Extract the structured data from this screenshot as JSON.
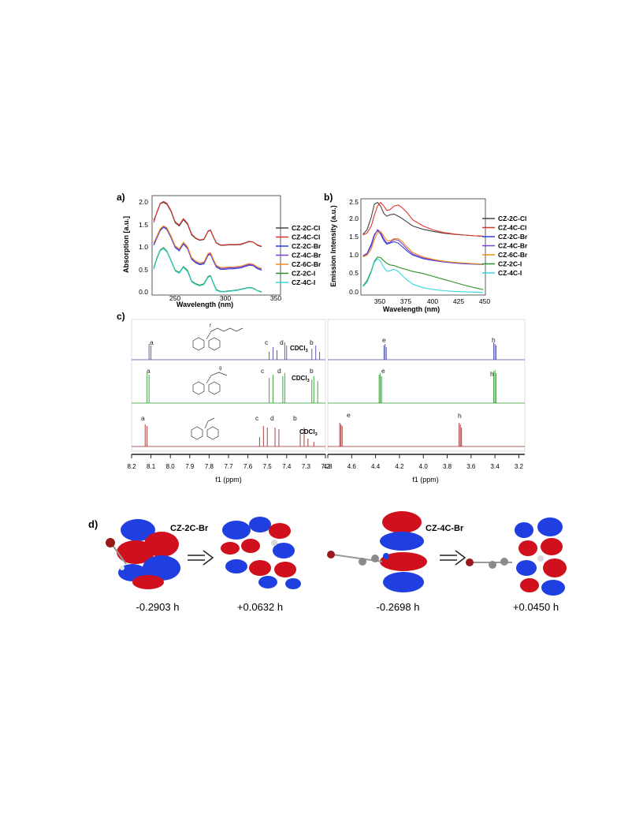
{
  "panel_a": {
    "label": "a)",
    "ylabel": "Absorption [a.u.]",
    "xlabel": "Wavelength (nm)",
    "xticks": [
      "250",
      "300",
      "350"
    ],
    "yticks": [
      "0.0",
      "0.5",
      "1.0",
      "1.5",
      "2.0"
    ],
    "legend": [
      {
        "name": "CZ-2C-Cl",
        "color": "#444444"
      },
      {
        "name": "CZ-4C-Cl",
        "color": "#e0342a"
      },
      {
        "name": "CZ-2C-Br",
        "color": "#2f43d8"
      },
      {
        "name": "CZ-4C-Br",
        "color": "#7a3fd0"
      },
      {
        "name": "CZ-6C-Br",
        "color": "#f08c1e"
      },
      {
        "name": "CZ-2C-I",
        "color": "#2f8f2a"
      },
      {
        "name": "CZ-4C-I",
        "color": "#35d8e0"
      }
    ]
  },
  "panel_b": {
    "label": "b)",
    "ylabel": "Emission Intensity (a.u.)",
    "xlabel": "Wavelength (nm)",
    "xticks": [
      "350",
      "375",
      "400",
      "425",
      "450"
    ],
    "yticks": [
      "0.0",
      "0.5",
      "1.0",
      "1.5",
      "2.0",
      "2.5"
    ],
    "legend": [
      {
        "name": "CZ-2C-Cl",
        "color": "#444444"
      },
      {
        "name": "CZ-4C-Cl",
        "color": "#e0342a"
      },
      {
        "name": "CZ-2C-Br",
        "color": "#2f43d8"
      },
      {
        "name": "CZ-4C-Br",
        "color": "#7a3fd0"
      },
      {
        "name": "CZ-6C-Br",
        "color": "#f08c1e"
      },
      {
        "name": "CZ-2C-I",
        "color": "#2f8f2a"
      },
      {
        "name": "CZ-4C-I",
        "color": "#35d8e0"
      }
    ]
  },
  "panel_c": {
    "label": "c)",
    "xlabel": "f1 (ppm)",
    "left_xticks": [
      "8.2",
      "8.1",
      "8.0",
      "7.9",
      "7.8",
      "7.7",
      "7.6",
      "7.5",
      "7.4",
      "7.3",
      "7.2"
    ],
    "right_xticks": [
      "4.8",
      "4.6",
      "4.4",
      "4.2",
      "4.0",
      "3.8",
      "3.6",
      "3.4",
      "3.2"
    ],
    "solvent": "CDCl",
    "solvent_sub": "3",
    "peak_letters": [
      "a",
      "b",
      "c",
      "d",
      "e",
      "f",
      "g",
      "h"
    ],
    "trace_colors": [
      "#4a4ab0",
      "#2f9a2f",
      "#a02a2a"
    ]
  },
  "panel_d": {
    "label": "d)",
    "molecule_1": "CZ-2C-Br",
    "molecule_2": "CZ-4C-Br",
    "energies": [
      "-0.2903 h",
      "+0.0632 h",
      "-0.2698 h",
      "+0.0450 h"
    ],
    "colors": {
      "lobe_red": "#d0101c",
      "lobe_blue": "#1f3fe0",
      "atom_br": "#9a1a1a",
      "atom_c": "#8a8a8a",
      "atom_h": "#e6e6e6"
    }
  },
  "chart_data": [
    {
      "type": "line",
      "title": "",
      "xlabel": "Wavelength (nm)",
      "ylabel": "Absorption [a.u.]",
      "xlim": [
        222,
        378
      ],
      "ylim": [
        -0.05,
        2.15
      ],
      "series": [
        {
          "name": "CZ-2C-Cl",
          "x": [
            224,
            228,
            232,
            236,
            240,
            245,
            250,
            255,
            260,
            265,
            270,
            275,
            280,
            285,
            290,
            293,
            296,
            300,
            305,
            310,
            315,
            320,
            325,
            330,
            335,
            340,
            345,
            350,
            355
          ],
          "values": [
            1.6,
            1.78,
            1.97,
            2.0,
            1.96,
            1.8,
            1.55,
            1.48,
            1.62,
            1.52,
            1.28,
            1.2,
            1.16,
            1.18,
            1.36,
            1.38,
            1.25,
            1.1,
            1.05,
            1.05,
            1.06,
            1.06,
            1.06,
            1.07,
            1.1,
            1.13,
            1.12,
            1.05,
            1.02
          ]
        },
        {
          "name": "CZ-4C-Cl",
          "x": [
            224,
            228,
            232,
            236,
            240,
            245,
            250,
            255,
            260,
            265,
            270,
            275,
            280,
            285,
            290,
            293,
            296,
            300,
            305,
            310,
            315,
            320,
            325,
            330,
            335,
            340,
            345,
            350,
            355
          ],
          "values": [
            1.55,
            1.8,
            1.98,
            2.02,
            1.98,
            1.82,
            1.57,
            1.5,
            1.64,
            1.54,
            1.3,
            1.21,
            1.17,
            1.19,
            1.37,
            1.39,
            1.26,
            1.11,
            1.06,
            1.06,
            1.07,
            1.07,
            1.07,
            1.08,
            1.11,
            1.14,
            1.12,
            1.06,
            1.03
          ]
        },
        {
          "name": "CZ-2C-Br",
          "x": [
            224,
            228,
            232,
            236,
            240,
            245,
            250,
            255,
            260,
            265,
            270,
            275,
            280,
            285,
            290,
            293,
            296,
            300,
            305,
            310,
            315,
            320,
            325,
            330,
            335,
            340,
            345,
            350,
            355
          ],
          "values": [
            1.05,
            1.22,
            1.38,
            1.45,
            1.4,
            1.22,
            1.0,
            0.93,
            1.08,
            0.98,
            0.74,
            0.66,
            0.62,
            0.64,
            0.83,
            0.85,
            0.72,
            0.57,
            0.52,
            0.52,
            0.53,
            0.53,
            0.54,
            0.55,
            0.58,
            0.61,
            0.6,
            0.53,
            0.5
          ]
        },
        {
          "name": "CZ-4C-Br",
          "x": [
            224,
            228,
            232,
            236,
            240,
            245,
            250,
            255,
            260,
            265,
            270,
            275,
            280,
            285,
            290,
            293,
            296,
            300,
            305,
            310,
            315,
            320,
            325,
            330,
            335,
            340,
            345,
            350,
            355
          ],
          "values": [
            1.08,
            1.24,
            1.4,
            1.47,
            1.42,
            1.24,
            1.02,
            0.95,
            1.1,
            1.0,
            0.76,
            0.68,
            0.64,
            0.66,
            0.85,
            0.87,
            0.74,
            0.59,
            0.54,
            0.54,
            0.55,
            0.55,
            0.56,
            0.57,
            0.6,
            0.63,
            0.61,
            0.55,
            0.52
          ]
        },
        {
          "name": "CZ-6C-Br",
          "x": [
            224,
            228,
            232,
            236,
            240,
            245,
            250,
            255,
            260,
            265,
            270,
            275,
            280,
            285,
            290,
            293,
            296,
            300,
            305,
            310,
            315,
            320,
            325,
            330,
            335,
            340,
            345,
            350,
            355
          ],
          "values": [
            1.1,
            1.26,
            1.42,
            1.48,
            1.44,
            1.26,
            1.04,
            0.97,
            1.12,
            1.02,
            0.78,
            0.7,
            0.66,
            0.68,
            0.87,
            0.89,
            0.76,
            0.61,
            0.56,
            0.56,
            0.57,
            0.57,
            0.58,
            0.59,
            0.62,
            0.65,
            0.63,
            0.57,
            0.54
          ]
        },
        {
          "name": "CZ-2C-I",
          "x": [
            224,
            228,
            232,
            236,
            240,
            245,
            250,
            255,
            260,
            265,
            270,
            275,
            280,
            285,
            290,
            293,
            296,
            300,
            305,
            310,
            315,
            320,
            325,
            330,
            335,
            340,
            345,
            350,
            355
          ],
          "values": [
            0.55,
            0.78,
            0.95,
            1.0,
            0.92,
            0.72,
            0.5,
            0.45,
            0.58,
            0.5,
            0.26,
            0.2,
            0.17,
            0.2,
            0.36,
            0.38,
            0.24,
            0.07,
            0.03,
            0.03,
            0.04,
            0.05,
            0.06,
            0.08,
            0.1,
            0.12,
            0.1,
            0.05,
            0.02
          ]
        },
        {
          "name": "CZ-4C-I",
          "x": [
            224,
            228,
            232,
            236,
            240,
            245,
            250,
            255,
            260,
            265,
            270,
            275,
            280,
            285,
            290,
            293,
            296,
            300,
            305,
            310,
            315,
            320,
            325,
            330,
            335,
            340,
            345,
            350,
            355
          ],
          "values": [
            0.52,
            0.75,
            0.93,
            0.97,
            0.9,
            0.7,
            0.48,
            0.43,
            0.56,
            0.47,
            0.24,
            0.18,
            0.15,
            0.18,
            0.34,
            0.36,
            0.22,
            0.05,
            0.02,
            0.02,
            0.03,
            0.04,
            0.05,
            0.07,
            0.09,
            0.11,
            0.09,
            0.04,
            0.01
          ]
        }
      ]
    },
    {
      "type": "line",
      "title": "",
      "xlabel": "Wavelength (nm)",
      "ylabel": "Emission Intensity (a.u.)",
      "xlim": [
        330,
        450
      ],
      "ylim": [
        -0.05,
        2.6
      ],
      "series": [
        {
          "name": "CZ-2C-Cl",
          "x": [
            332,
            336,
            340,
            343,
            346,
            349,
            352,
            355,
            358,
            362,
            366,
            370,
            375,
            380,
            390,
            400,
            410,
            420,
            430,
            440,
            448
          ],
          "values": [
            1.62,
            1.75,
            2.1,
            2.45,
            2.5,
            2.4,
            2.2,
            2.12,
            2.16,
            2.18,
            2.12,
            2.05,
            1.95,
            1.85,
            1.76,
            1.7,
            1.65,
            1.62,
            1.6,
            1.58,
            1.57
          ]
        },
        {
          "name": "CZ-4C-Cl",
          "x": [
            332,
            336,
            340,
            343,
            346,
            349,
            352,
            355,
            358,
            362,
            366,
            370,
            375,
            380,
            390,
            400,
            410,
            420,
            430,
            440,
            448
          ],
          "values": [
            1.6,
            1.66,
            1.85,
            2.15,
            2.4,
            2.5,
            2.4,
            2.28,
            2.3,
            2.4,
            2.43,
            2.35,
            2.2,
            2.02,
            1.85,
            1.74,
            1.67,
            1.63,
            1.6,
            1.58,
            1.57
          ]
        },
        {
          "name": "CZ-2C-Br",
          "x": [
            332,
            336,
            340,
            343,
            346,
            349,
            352,
            355,
            358,
            362,
            366,
            370,
            375,
            380,
            390,
            400,
            410,
            420,
            430,
            440,
            448
          ],
          "values": [
            1.03,
            1.1,
            1.35,
            1.62,
            1.72,
            1.63,
            1.45,
            1.35,
            1.38,
            1.42,
            1.38,
            1.28,
            1.15,
            1.05,
            0.95,
            0.9,
            0.86,
            0.83,
            0.81,
            0.8,
            0.79
          ]
        },
        {
          "name": "CZ-4C-Br",
          "x": [
            332,
            336,
            340,
            343,
            346,
            349,
            352,
            355,
            358,
            362,
            366,
            370,
            375,
            380,
            390,
            400,
            410,
            420,
            430,
            440,
            448
          ],
          "values": [
            1.02,
            1.08,
            1.3,
            1.58,
            1.75,
            1.68,
            1.5,
            1.38,
            1.4,
            1.48,
            1.46,
            1.36,
            1.2,
            1.08,
            0.97,
            0.91,
            0.87,
            0.84,
            0.82,
            0.81,
            0.8
          ]
        },
        {
          "name": "CZ-6C-Br",
          "x": [
            332,
            336,
            340,
            343,
            346,
            349,
            352,
            355,
            358,
            362,
            366,
            370,
            375,
            380,
            390,
            400,
            410,
            420,
            430,
            440,
            448
          ],
          "values": [
            1.0,
            1.05,
            1.22,
            1.48,
            1.66,
            1.7,
            1.58,
            1.45,
            1.44,
            1.5,
            1.5,
            1.42,
            1.26,
            1.12,
            1.0,
            0.93,
            0.88,
            0.85,
            0.83,
            0.81,
            0.8
          ]
        },
        {
          "name": "CZ-2C-I",
          "x": [
            332,
            336,
            340,
            343,
            346,
            349,
            352,
            355,
            358,
            362,
            366,
            370,
            375,
            380,
            390,
            400,
            410,
            420,
            430,
            440,
            448
          ],
          "values": [
            0.2,
            0.35,
            0.62,
            0.88,
            1.0,
            0.98,
            0.9,
            0.82,
            0.78,
            0.76,
            0.72,
            0.68,
            0.64,
            0.6,
            0.54,
            0.46,
            0.38,
            0.3,
            0.22,
            0.15,
            0.1
          ]
        },
        {
          "name": "CZ-4C-I",
          "x": [
            332,
            336,
            340,
            343,
            346,
            349,
            352,
            355,
            358,
            362,
            366,
            370,
            375,
            380,
            390,
            400,
            410,
            420,
            430,
            440,
            448
          ],
          "values": [
            0.18,
            0.3,
            0.58,
            0.85,
            0.95,
            0.88,
            0.72,
            0.6,
            0.62,
            0.66,
            0.6,
            0.48,
            0.35,
            0.25,
            0.15,
            0.1,
            0.07,
            0.05,
            0.04,
            0.03,
            0.02
          ]
        }
      ]
    }
  ]
}
